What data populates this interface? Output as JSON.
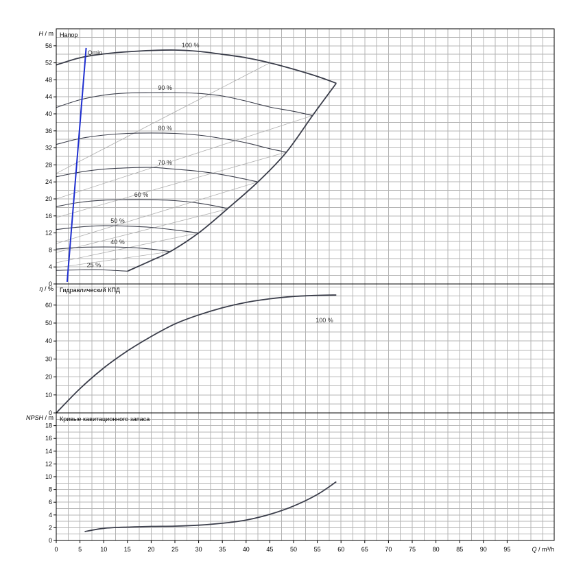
{
  "colors": {
    "curve": "#3a3d4a",
    "qmin": "#1f2fd0",
    "system": "#b0b0b0",
    "grid": "#b4b4b4"
  },
  "chart_data": [
    {
      "id": "head",
      "type": "line",
      "title": "Напор",
      "ylabel": "H",
      "yunit": "/ m",
      "xlim": [
        0,
        105
      ],
      "ylim": [
        0,
        60
      ],
      "yticks": [
        0,
        4,
        8,
        12,
        16,
        20,
        24,
        28,
        32,
        36,
        40,
        44,
        48,
        52,
        56
      ],
      "grid": true,
      "series": [
        {
          "name": "100 %",
          "x": [
            0,
            5,
            10,
            15,
            20,
            25,
            30,
            35,
            40,
            45,
            50,
            55,
            59
          ],
          "y": [
            51.5,
            53.2,
            54.1,
            54.6,
            54.9,
            55,
            54.7,
            54,
            53.2,
            52,
            50.5,
            48.8,
            47.2
          ]
        },
        {
          "name": "90 %",
          "x": [
            0,
            5,
            10,
            15,
            20,
            25,
            30,
            35,
            40,
            45,
            50,
            54
          ],
          "y": [
            41.5,
            43.3,
            44.4,
            44.9,
            45,
            45,
            44.8,
            44.2,
            43,
            41.6,
            40.6,
            39.6
          ]
        },
        {
          "name": "80 %",
          "x": [
            0,
            5,
            10,
            15,
            20,
            25,
            30,
            35,
            40,
            45,
            48.5
          ],
          "y": [
            32.8,
            34.2,
            35,
            35.4,
            35.5,
            35.4,
            35,
            34.2,
            33.2,
            31.8,
            31
          ]
        },
        {
          "name": "70 %",
          "x": [
            0,
            5,
            10,
            15,
            20,
            25,
            30,
            35,
            40,
            42.5
          ],
          "y": [
            25.2,
            26.3,
            27,
            27.3,
            27.4,
            27,
            26.5,
            25.7,
            24.6,
            24
          ]
        },
        {
          "name": "60 %",
          "x": [
            0,
            5,
            10,
            15,
            20,
            25,
            30,
            35,
            36
          ],
          "y": [
            18.2,
            19.2,
            19.7,
            19.8,
            19.8,
            19.6,
            19,
            18,
            17.6
          ]
        },
        {
          "name": "50 %",
          "x": [
            0,
            5,
            10,
            15,
            20,
            25,
            30
          ],
          "y": [
            12.8,
            13.4,
            13.7,
            13.6,
            13.3,
            12.7,
            12
          ]
        },
        {
          "name": "40 %",
          "x": [
            0,
            5,
            10,
            15,
            20,
            24
          ],
          "y": [
            8.2,
            8.6,
            8.7,
            8.6,
            8.2,
            7.6
          ]
        },
        {
          "name": "25 %",
          "x": [
            0,
            5,
            10,
            15
          ],
          "y": [
            3.2,
            3.3,
            3.3,
            3.0
          ]
        },
        {
          "name": "",
          "role": "max",
          "x": [
            15,
            20,
            24,
            30,
            36,
            42.5,
            48.5,
            54,
            59
          ],
          "y": [
            3.0,
            5.5,
            7.6,
            12,
            17.6,
            24,
            31,
            39.6,
            47.2
          ]
        }
      ],
      "system_curves": [
        {
          "x": [
            0,
            45
          ],
          "y": [
            26,
            52
          ]
        },
        {
          "x": [
            0,
            54
          ],
          "y": [
            20,
            39.6
          ]
        },
        {
          "x": [
            0,
            48.5
          ],
          "y": [
            15.6,
            31
          ]
        },
        {
          "x": [
            0,
            42.5
          ],
          "y": [
            9.5,
            24
          ]
        },
        {
          "x": [
            0,
            36
          ],
          "y": [
            7.4,
            17.6
          ]
        },
        {
          "x": [
            0,
            30
          ],
          "y": [
            5,
            12
          ]
        },
        {
          "x": [
            0,
            24
          ],
          "y": [
            3.8,
            7.6
          ]
        }
      ],
      "qmin": {
        "label": "Qmin",
        "x": [
          2.3,
          6.3
        ],
        "y": [
          0.5,
          55.5
        ]
      }
    },
    {
      "id": "efficiency",
      "type": "line",
      "title": "Гидравлический КПД",
      "ylabel": "η",
      "yunit": "/ %",
      "xlim": [
        0,
        105
      ],
      "ylim": [
        0,
        70
      ],
      "yticks": [
        0,
        10,
        20,
        30,
        40,
        50,
        60
      ],
      "grid": true,
      "series": [
        {
          "name": "100 %",
          "x": [
            0,
            5,
            10,
            15,
            20,
            25,
            30,
            35,
            40,
            45,
            50,
            55,
            59
          ],
          "y": [
            0,
            13.5,
            25,
            34.5,
            42.5,
            49.5,
            54.5,
            58.5,
            61.5,
            63.5,
            64.8,
            65.4,
            65.6
          ]
        }
      ]
    },
    {
      "id": "npsh",
      "type": "line",
      "title": "Кривые кавитационного запаса",
      "ylabel": "NPSH",
      "yunit": "/ m",
      "xlim": [
        0,
        105
      ],
      "ylim": [
        0,
        20
      ],
      "yticks": [
        0,
        2,
        4,
        6,
        8,
        10,
        12,
        14,
        16,
        18
      ],
      "grid": true,
      "series": [
        {
          "name": "",
          "x": [
            6,
            10,
            15,
            20,
            25,
            30,
            35,
            40,
            45,
            50,
            55,
            59
          ],
          "y": [
            1.4,
            1.9,
            2.1,
            2.2,
            2.25,
            2.4,
            2.7,
            3.2,
            4.1,
            5.4,
            7.2,
            9.2
          ]
        }
      ]
    }
  ],
  "x_axis": {
    "label": "Q",
    "unit": "/ m³/h",
    "ticks": [
      0,
      5,
      10,
      15,
      20,
      25,
      30,
      35,
      40,
      45,
      50,
      55,
      60,
      65,
      70,
      75,
      80,
      85,
      90,
      95
    ]
  }
}
